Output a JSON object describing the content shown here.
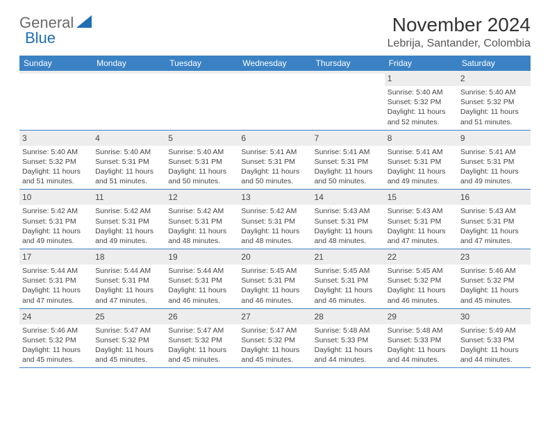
{
  "logo": {
    "word1": "General",
    "word2": "Blue"
  },
  "title": "November 2024",
  "subtitle": "Lebrija, Santander, Colombia",
  "colors": {
    "header_bar": "#3b82c4",
    "daynum_bg": "#ededed",
    "text": "#333333",
    "logo_gray": "#6a6a6a",
    "logo_blue": "#1f6fb2",
    "rule": "#3b82c4"
  },
  "weekdays": [
    "Sunday",
    "Monday",
    "Tuesday",
    "Wednesday",
    "Thursday",
    "Friday",
    "Saturday"
  ],
  "weeks": [
    [
      {
        "empty": true
      },
      {
        "empty": true
      },
      {
        "empty": true
      },
      {
        "empty": true
      },
      {
        "empty": true
      },
      {
        "n": "1",
        "sunrise": "5:40 AM",
        "sunset": "5:32 PM",
        "daylight": "11 hours and 52 minutes."
      },
      {
        "n": "2",
        "sunrise": "5:40 AM",
        "sunset": "5:32 PM",
        "daylight": "11 hours and 51 minutes."
      }
    ],
    [
      {
        "n": "3",
        "sunrise": "5:40 AM",
        "sunset": "5:32 PM",
        "daylight": "11 hours and 51 minutes."
      },
      {
        "n": "4",
        "sunrise": "5:40 AM",
        "sunset": "5:31 PM",
        "daylight": "11 hours and 51 minutes."
      },
      {
        "n": "5",
        "sunrise": "5:40 AM",
        "sunset": "5:31 PM",
        "daylight": "11 hours and 50 minutes."
      },
      {
        "n": "6",
        "sunrise": "5:41 AM",
        "sunset": "5:31 PM",
        "daylight": "11 hours and 50 minutes."
      },
      {
        "n": "7",
        "sunrise": "5:41 AM",
        "sunset": "5:31 PM",
        "daylight": "11 hours and 50 minutes."
      },
      {
        "n": "8",
        "sunrise": "5:41 AM",
        "sunset": "5:31 PM",
        "daylight": "11 hours and 49 minutes."
      },
      {
        "n": "9",
        "sunrise": "5:41 AM",
        "sunset": "5:31 PM",
        "daylight": "11 hours and 49 minutes."
      }
    ],
    [
      {
        "n": "10",
        "sunrise": "5:42 AM",
        "sunset": "5:31 PM",
        "daylight": "11 hours and 49 minutes."
      },
      {
        "n": "11",
        "sunrise": "5:42 AM",
        "sunset": "5:31 PM",
        "daylight": "11 hours and 49 minutes."
      },
      {
        "n": "12",
        "sunrise": "5:42 AM",
        "sunset": "5:31 PM",
        "daylight": "11 hours and 48 minutes."
      },
      {
        "n": "13",
        "sunrise": "5:42 AM",
        "sunset": "5:31 PM",
        "daylight": "11 hours and 48 minutes."
      },
      {
        "n": "14",
        "sunrise": "5:43 AM",
        "sunset": "5:31 PM",
        "daylight": "11 hours and 48 minutes."
      },
      {
        "n": "15",
        "sunrise": "5:43 AM",
        "sunset": "5:31 PM",
        "daylight": "11 hours and 47 minutes."
      },
      {
        "n": "16",
        "sunrise": "5:43 AM",
        "sunset": "5:31 PM",
        "daylight": "11 hours and 47 minutes."
      }
    ],
    [
      {
        "n": "17",
        "sunrise": "5:44 AM",
        "sunset": "5:31 PM",
        "daylight": "11 hours and 47 minutes."
      },
      {
        "n": "18",
        "sunrise": "5:44 AM",
        "sunset": "5:31 PM",
        "daylight": "11 hours and 47 minutes."
      },
      {
        "n": "19",
        "sunrise": "5:44 AM",
        "sunset": "5:31 PM",
        "daylight": "11 hours and 46 minutes."
      },
      {
        "n": "20",
        "sunrise": "5:45 AM",
        "sunset": "5:31 PM",
        "daylight": "11 hours and 46 minutes."
      },
      {
        "n": "21",
        "sunrise": "5:45 AM",
        "sunset": "5:31 PM",
        "daylight": "11 hours and 46 minutes."
      },
      {
        "n": "22",
        "sunrise": "5:45 AM",
        "sunset": "5:32 PM",
        "daylight": "11 hours and 46 minutes."
      },
      {
        "n": "23",
        "sunrise": "5:46 AM",
        "sunset": "5:32 PM",
        "daylight": "11 hours and 45 minutes."
      }
    ],
    [
      {
        "n": "24",
        "sunrise": "5:46 AM",
        "sunset": "5:32 PM",
        "daylight": "11 hours and 45 minutes."
      },
      {
        "n": "25",
        "sunrise": "5:47 AM",
        "sunset": "5:32 PM",
        "daylight": "11 hours and 45 minutes."
      },
      {
        "n": "26",
        "sunrise": "5:47 AM",
        "sunset": "5:32 PM",
        "daylight": "11 hours and 45 minutes."
      },
      {
        "n": "27",
        "sunrise": "5:47 AM",
        "sunset": "5:32 PM",
        "daylight": "11 hours and 45 minutes."
      },
      {
        "n": "28",
        "sunrise": "5:48 AM",
        "sunset": "5:33 PM",
        "daylight": "11 hours and 44 minutes."
      },
      {
        "n": "29",
        "sunrise": "5:48 AM",
        "sunset": "5:33 PM",
        "daylight": "11 hours and 44 minutes."
      },
      {
        "n": "30",
        "sunrise": "5:49 AM",
        "sunset": "5:33 PM",
        "daylight": "11 hours and 44 minutes."
      }
    ]
  ],
  "labels": {
    "sunrise": "Sunrise:",
    "sunset": "Sunset:",
    "daylight": "Daylight:"
  }
}
